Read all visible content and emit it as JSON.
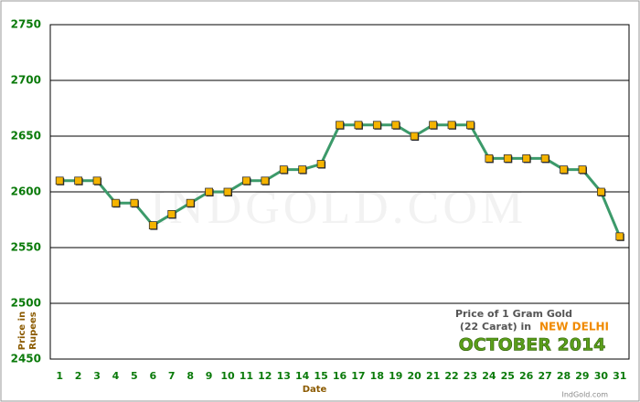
{
  "chart_data": {
    "type": "line",
    "ylabel": [
      "Price in",
      "Rupees"
    ],
    "xlabel": "Date",
    "annotation": {
      "line1": "Price of 1 Gram Gold",
      "line2": "(22 Carat) in",
      "city": "NEW DELHI",
      "period": "OCTOBER 2014",
      "source": "IndGold.com"
    },
    "watermark": "INDGOLD.COM",
    "categories": [
      "1",
      "2",
      "3",
      "4",
      "5",
      "6",
      "7",
      "8",
      "9",
      "10",
      "11",
      "12",
      "13",
      "14",
      "15",
      "16",
      "17",
      "18",
      "19",
      "20",
      "21",
      "22",
      "23",
      "24",
      "25",
      "26",
      "27",
      "28",
      "29",
      "30",
      "31"
    ],
    "series": [
      {
        "color": "#3c9a6a",
        "values": [
          2610,
          2610,
          2610,
          2590,
          2590,
          2570,
          2580,
          2590,
          2600,
          2600,
          2610,
          2610,
          2620,
          2620,
          2625,
          2660,
          2660,
          2660,
          2660,
          2650,
          2660,
          2660,
          2660,
          2630,
          2630,
          2630,
          2630,
          2620,
          2620,
          2600,
          2560
        ]
      }
    ],
    "marker_color": "#f5b400",
    "ylim": [
      2450,
      2750
    ],
    "yticks": [
      2450,
      2500,
      2550,
      2600,
      2650,
      2700,
      2750
    ],
    "grid": true
  }
}
